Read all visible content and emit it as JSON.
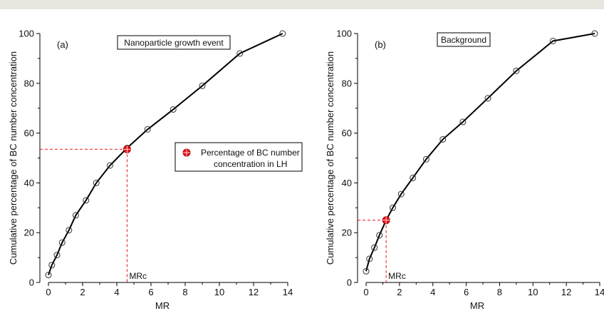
{
  "chart_data": [
    {
      "type": "line",
      "panel_label": "(a)",
      "annotation": "Nanoparticle growth event",
      "xlabel": "MR",
      "ylabel": "Cumulative percentage of BC number concentration",
      "xlim": [
        0,
        14
      ],
      "ylim": [
        0,
        100
      ],
      "xticks": [
        0,
        2,
        4,
        6,
        8,
        10,
        12,
        14
      ],
      "yticks": [
        0,
        20,
        40,
        60,
        80,
        100
      ],
      "series": [
        {
          "x": [
            0.0,
            0.2,
            0.5,
            0.8,
            1.2,
            1.6,
            2.2,
            2.8,
            3.6,
            4.6,
            5.8,
            7.3,
            9.0,
            11.2,
            13.7
          ],
          "y": [
            3,
            7,
            11,
            16,
            21,
            27,
            33,
            40,
            47,
            54,
            61.5,
            69.5,
            79,
            92,
            100
          ]
        }
      ],
      "marker": {
        "x": 4.6,
        "y": 53.5,
        "xlabel": "MRc"
      },
      "legend": {
        "label_line1": "Percentage of BC number",
        "label_line2": "concentration in LH",
        "placement": "center-right"
      },
      "colors": {
        "line": "#000000",
        "marker": "#e8141c",
        "guide": "#e8141c"
      }
    },
    {
      "type": "line",
      "panel_label": "(b)",
      "annotation": "Background",
      "xlabel": "MR",
      "ylabel": "Cumulative percentage of BC number concentration",
      "xlim": [
        0,
        14
      ],
      "ylim": [
        0,
        100
      ],
      "xticks": [
        0,
        2,
        4,
        6,
        8,
        10,
        12,
        14
      ],
      "yticks": [
        0,
        20,
        40,
        60,
        80,
        100
      ],
      "series": [
        {
          "x": [
            0.0,
            0.2,
            0.5,
            0.8,
            1.2,
            1.6,
            2.1,
            2.8,
            3.6,
            4.6,
            5.8,
            7.3,
            9.0,
            11.2,
            13.7
          ],
          "y": [
            4.5,
            9.5,
            14,
            19,
            25,
            30,
            35.5,
            42,
            49.5,
            57.5,
            64.5,
            74,
            85,
            97,
            100
          ]
        }
      ],
      "marker": {
        "x": 1.2,
        "y": 25,
        "xlabel": "MRc"
      },
      "colors": {
        "line": "#000000",
        "marker": "#e8141c",
        "guide": "#e8141c"
      }
    }
  ]
}
